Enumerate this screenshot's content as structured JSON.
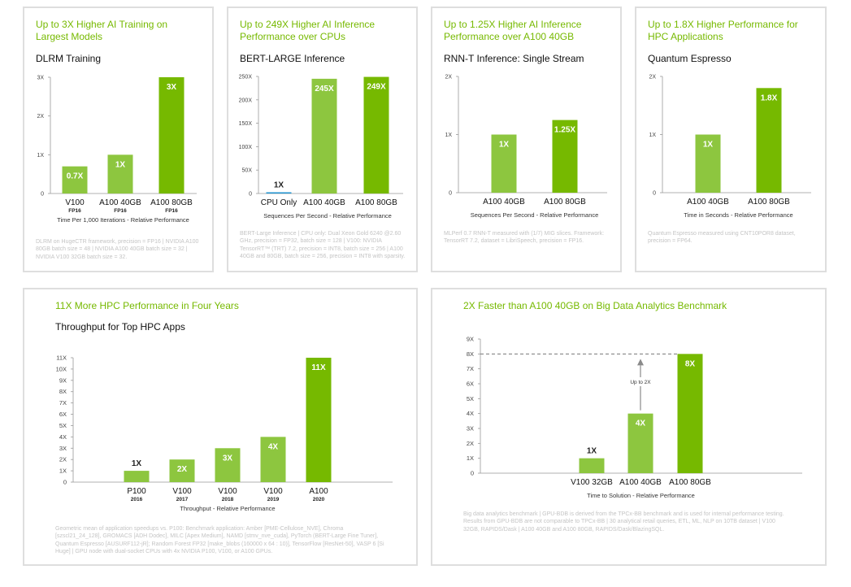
{
  "colors": {
    "light": "#8dc63f",
    "dark": "#76b900",
    "blue": "#1f93d0",
    "axis": "#999999",
    "accent": "#76b900"
  },
  "panels": [
    {
      "headline": "Up to 3X Higher AI Training on Largest Models",
      "subtitle": "DLRM Training",
      "footnote": "DLRM on HugeCTR framework, precision = FP16 | NVIDIA A100 80GB batch size = 48 | NVIDIA A100 40GB batch size = 32 | NVIDIA V100 32GB batch size = 32.",
      "chart_data": {
        "type": "bar",
        "title": "DLRM Training",
        "xlabel": "Time Per 1,000 Iterations - Relative Performance",
        "ylim": [
          0,
          3
        ],
        "yticks": [
          "0",
          "1X",
          "2X",
          "3X"
        ],
        "categories": [
          "V100",
          "A100 40GB",
          "A100 80GB"
        ],
        "sublabels": [
          "FP16",
          "FP16",
          "FP16"
        ],
        "values": [
          0.7,
          1,
          3
        ],
        "labels": [
          "0.7X",
          "1X",
          "3X"
        ],
        "bar_colors": [
          "light",
          "light",
          "dark"
        ]
      }
    },
    {
      "headline": "Up to 249X Higher AI Inference Performance over CPUs",
      "subtitle": "BERT-LARGE Inference",
      "footnote": "BERT-Large Inference | CPU only: Dual Xeon Gold 6240 @2.60 GHz, precision = FP32, batch size = 128 | V100: NVIDIA TensorRT™ (TRT) 7.2, precision = INT8, batch size = 256 | A100 40GB and 80GB, batch size = 256, precision = INT8 with sparsity.",
      "chart_data": {
        "type": "bar",
        "title": "BERT-LARGE Inference",
        "xlabel": "Sequences Per Second - Relative Performance",
        "ylim": [
          0,
          250
        ],
        "yticks": [
          "0",
          "50X",
          "100X",
          "150X",
          "200X",
          "250X"
        ],
        "categories": [
          "CPU Only",
          "A100 40GB",
          "A100 80GB"
        ],
        "sublabels": [
          "",
          "",
          ""
        ],
        "values": [
          1,
          245,
          249
        ],
        "labels": [
          "1X",
          "245X",
          "249X"
        ],
        "bar_colors": [
          "blue",
          "light",
          "dark"
        ]
      }
    },
    {
      "headline": "Up to 1.25X Higher AI Inference Performance over A100 40GB",
      "subtitle": "RNN-T Inference: Single Stream",
      "footnote": "MLPerf 0.7 RNN-T measured with (1/7) MIG slices. Framework: TensorRT 7.2, dataset = LibriSpeech, precision = FP16.",
      "chart_data": {
        "type": "bar",
        "title": "RNN-T Inference: Single Stream",
        "xlabel": "Sequences Per Second - Relative Performance",
        "ylim": [
          0,
          2
        ],
        "yticks": [
          "0",
          "1X",
          "2X"
        ],
        "categories": [
          "A100 40GB",
          "A100 80GB"
        ],
        "sublabels": [
          "",
          ""
        ],
        "values": [
          1,
          1.25
        ],
        "labels": [
          "1X",
          "1.25X"
        ],
        "bar_colors": [
          "light",
          "dark"
        ]
      }
    },
    {
      "headline": "Up to 1.8X Higher Performance for HPC Applications",
      "subtitle": "Quantum Espresso",
      "footnote": "Quantum Espresso measured using CNT10POR8 dataset, precision = FP64.",
      "chart_data": {
        "type": "bar",
        "title": "Quantum Espresso",
        "xlabel": "Time in Seconds - Relative Performance",
        "ylim": [
          0,
          2
        ],
        "yticks": [
          "0",
          "1X",
          "2X"
        ],
        "categories": [
          "A100 40GB",
          "A100 80GB"
        ],
        "sublabels": [
          "",
          ""
        ],
        "values": [
          1,
          1.8
        ],
        "labels": [
          "1X",
          "1.8X"
        ],
        "bar_colors": [
          "light",
          "dark"
        ]
      }
    },
    {
      "headline": "11X More HPC Performance in Four Years",
      "subtitle": "Throughput for Top HPC Apps",
      "footnote": "Geometric mean of application speedups vs. P100: Benchmark application: Amber [PME-Cellulose_NVE], Chroma [szscl21_24_128], GROMACS [ADH Dodec], MILC [Apex Medium], NAMD [stmv_nve_cuda], PyTorch (BERT-Large Fine Tuner], Quantum Espresso [AUSURF112-jR]; Random Forest FP32 [make_blobs (160000 x 64 : 10)], TensorFlow [ResNet-50], VASP 6 [Si Huge] | GPU node with dual-socket CPUs with 4x NVIDIA P100, V100, or A100 GPUs.",
      "chart_data": {
        "type": "bar",
        "title": "Throughput for Top HPC Apps",
        "xlabel": "Throughput - Relative Performance",
        "ylim": [
          0,
          11
        ],
        "yticks": [
          "0",
          "1X",
          "2X",
          "3X",
          "4X",
          "5X",
          "6X",
          "7X",
          "8X",
          "9X",
          "10X",
          "11X"
        ],
        "categories": [
          "P100",
          "V100",
          "V100",
          "V100",
          "A100"
        ],
        "sublabels": [
          "2016",
          "2017",
          "2018",
          "2019",
          "2020"
        ],
        "values": [
          1,
          2,
          3,
          4,
          11
        ],
        "labels": [
          "1X",
          "2X",
          "3X",
          "4X",
          "11X"
        ],
        "bar_colors": [
          "light",
          "light",
          "light",
          "light",
          "dark"
        ]
      }
    },
    {
      "headline": "2X Faster than A100 40GB on Big Data Analytics Benchmark",
      "subtitle": "",
      "footnote": "Big data analytics benchmark | GPU-BDB is derived from the TPCx-BB benchmark and is used for internal performance testing. Results from GPU-BDB are not comparable to TPCx-BB | 30 analytical retail queries, ETL, ML, NLP on 10TB dataset | V100 32GB, RAPIDS/Dask | A100 40GB and A100 80GB, RAPIDS/Dask/BlazingSQL.",
      "chart_data": {
        "type": "bar",
        "xlabel": "Time to Solution - Relative Performance",
        "ylim": [
          0,
          9
        ],
        "yticks": [
          "0",
          "1X",
          "2X",
          "3X",
          "4X",
          "5X",
          "6X",
          "7X",
          "8X",
          "9X"
        ],
        "categories": [
          "V100 32GB",
          "A100 40GB",
          "A100 80GB"
        ],
        "sublabels": [
          "",
          "",
          ""
        ],
        "values": [
          1,
          4,
          8
        ],
        "labels": [
          "1X",
          "4X",
          "8X"
        ],
        "bar_colors": [
          "light",
          "light",
          "dark"
        ],
        "annotation": {
          "text": "Up to 2X",
          "from": 4,
          "to": 8
        }
      }
    }
  ]
}
